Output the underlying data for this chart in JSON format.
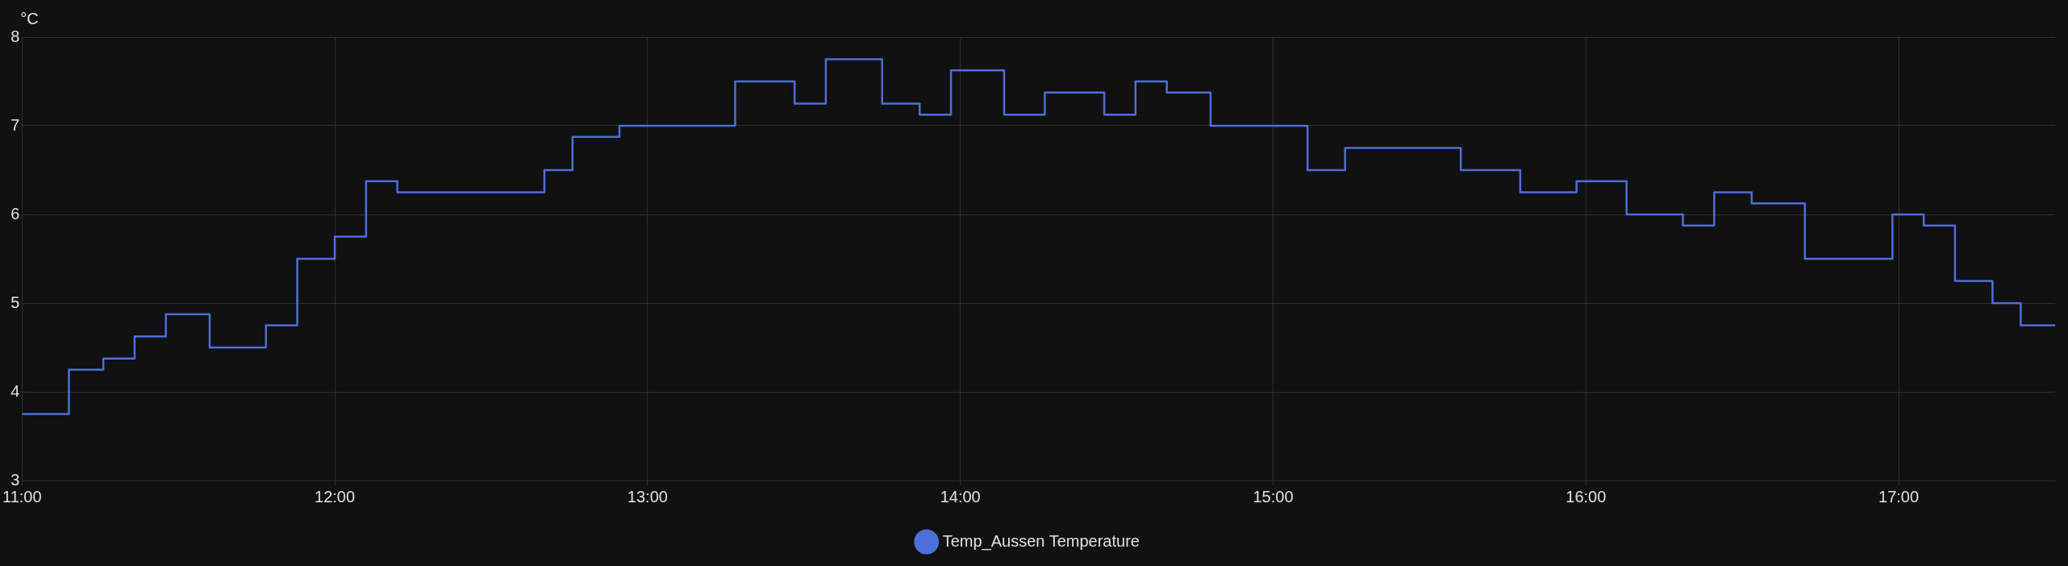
{
  "chart_data": {
    "type": "step",
    "ylabel": "°C",
    "x": [
      11.0,
      11.15,
      11.26,
      11.36,
      11.46,
      11.6,
      11.78,
      11.88,
      12.0,
      12.1,
      12.2,
      12.67,
      12.76,
      12.91,
      13.28,
      13.47,
      13.57,
      13.75,
      13.87,
      13.97,
      14.14,
      14.27,
      14.46,
      14.56,
      14.66,
      14.8,
      15.11,
      15.23,
      15.6,
      15.79,
      15.97,
      16.13,
      16.31,
      16.41,
      16.53,
      16.7,
      16.98,
      17.08,
      17.18,
      17.3,
      17.39,
      17.5
    ],
    "series": [
      {
        "name": "Temp_Aussen Temperature",
        "color": "#4c6fdc",
        "values": [
          3.75,
          4.25,
          4.375,
          4.625,
          4.875,
          4.5,
          4.75,
          5.5,
          5.75,
          6.375,
          6.25,
          6.5,
          6.875,
          7.0,
          7.5,
          7.25,
          7.75,
          7.25,
          7.125,
          7.625,
          7.125,
          7.375,
          7.125,
          7.5,
          7.375,
          7.0,
          6.5,
          6.75,
          6.5,
          6.25,
          6.375,
          6.0,
          5.875,
          6.25,
          6.125,
          5.5,
          6.0,
          5.875,
          5.25,
          5.0,
          4.75,
          4.75
        ]
      }
    ],
    "xlim": [
      11.0,
      17.5
    ],
    "xticks": [
      {
        "value": 11,
        "label": "11:00"
      },
      {
        "value": 12,
        "label": "12:00"
      },
      {
        "value": 13,
        "label": "13:00"
      },
      {
        "value": 14,
        "label": "14:00"
      },
      {
        "value": 15,
        "label": "15:00"
      },
      {
        "value": 16,
        "label": "16:00"
      },
      {
        "value": 17,
        "label": "17:00"
      }
    ],
    "ylim": [
      3,
      8
    ],
    "yticks": [
      3,
      4,
      5,
      6,
      7,
      8
    ],
    "grid": true,
    "legend": "bottom",
    "marker": "none"
  }
}
